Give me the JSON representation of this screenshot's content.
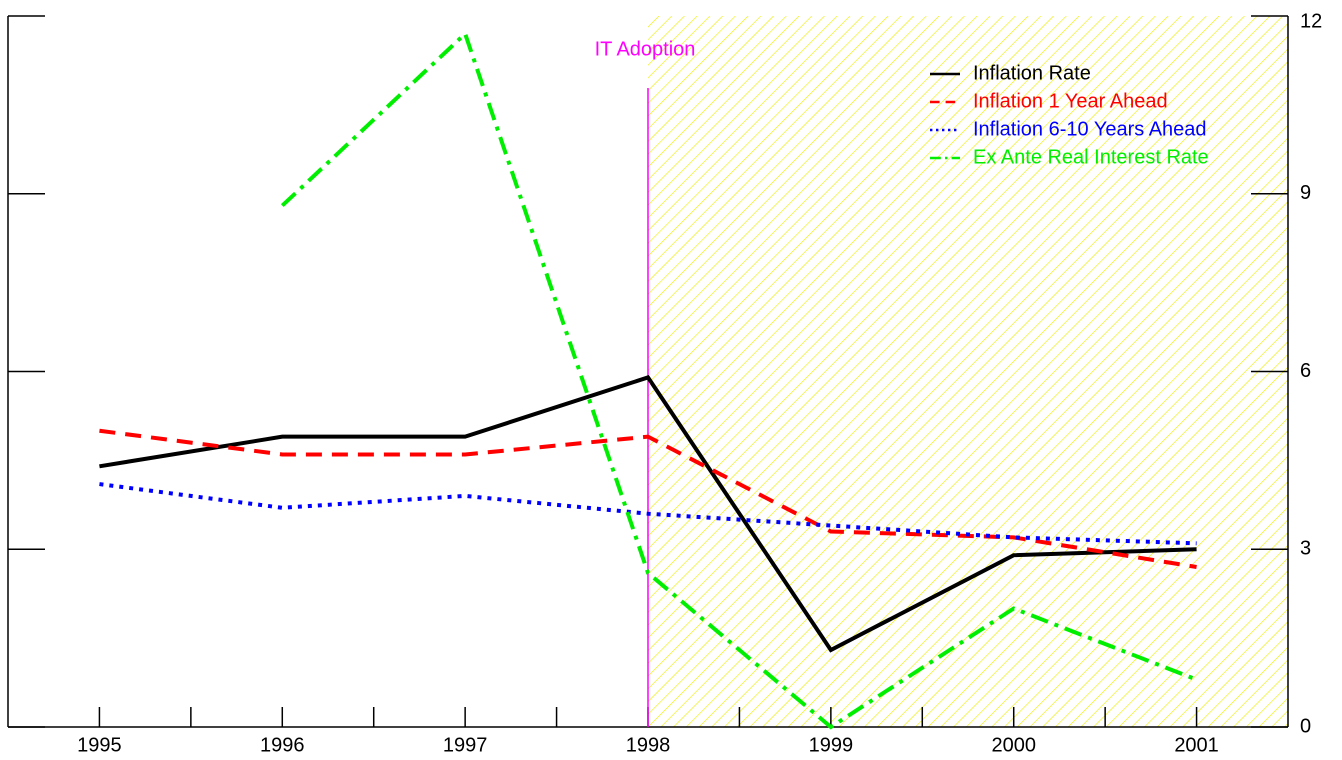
{
  "chart_data": {
    "type": "line",
    "x": [
      1995,
      1996,
      1997,
      1998,
      1999,
      2000,
      2001
    ],
    "series": [
      {
        "name": "Inflation Rate",
        "color": "#000000",
        "dash": "solid",
        "values": [
          4.4,
          4.9,
          4.9,
          5.9,
          1.3,
          2.9,
          3.0
        ]
      },
      {
        "name": "Inflation 1 Year Ahead",
        "color": "#ff0000",
        "dash": "dashed",
        "values": [
          5.0,
          4.6,
          4.6,
          4.9,
          3.3,
          3.2,
          2.7
        ]
      },
      {
        "name": "Inflation 6-10 Years Ahead",
        "color": "#0000ff",
        "dash": "dotted",
        "values": [
          4.1,
          3.7,
          3.9,
          3.6,
          3.4,
          3.2,
          3.1
        ]
      },
      {
        "name": "Ex Ante Real Interest Rate",
        "color": "#00ee00",
        "dash": "dashdot",
        "values": [
          null,
          8.8,
          11.7,
          2.6,
          0.0,
          2.0,
          0.8
        ]
      }
    ],
    "xlim": [
      1994.5,
      2001.5
    ],
    "xticks": [
      1995,
      1996,
      1997,
      1998,
      1999,
      2000,
      2001
    ],
    "xminorticks": [
      1995.5,
      1996.5,
      1997.5,
      1998.5,
      1999.5,
      2000.5
    ],
    "ylim": [
      0,
      12
    ],
    "yticks": [
      0,
      3,
      6,
      9,
      12
    ],
    "annotation": {
      "text": "IT Adoption",
      "x": 1998,
      "color": "#ff00ff"
    },
    "shade_color": "#eeee00",
    "legend": "upper right"
  }
}
